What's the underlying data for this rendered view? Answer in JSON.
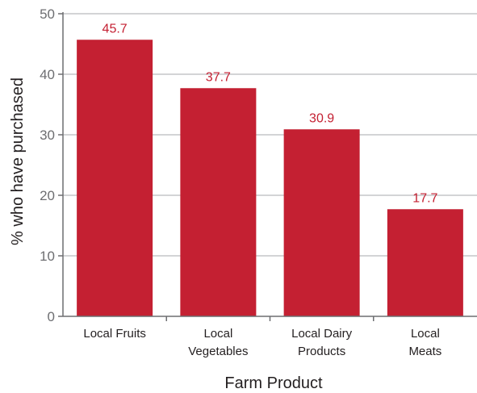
{
  "chart_data": {
    "type": "bar",
    "categories": [
      [
        "Local Fruits"
      ],
      [
        "Local",
        "Vegetables"
      ],
      [
        "Local Dairy",
        "Products"
      ],
      [
        "Local",
        "Meats"
      ]
    ],
    "values": [
      45.7,
      37.7,
      30.9,
      17.7
    ],
    "value_labels": [
      "45.7",
      "37.7",
      "30.9",
      "17.7"
    ],
    "xlabel": "Farm Product",
    "ylabel": "% who have purchased",
    "ylim": [
      0,
      50
    ],
    "yticks": [
      0,
      10,
      20,
      30,
      40,
      50
    ],
    "grid": true,
    "legend": "none",
    "colors": {
      "bar": "#c42032",
      "value_label": "#c42032",
      "grid": "#a7a9ac",
      "axis": "#6d6e71"
    }
  }
}
